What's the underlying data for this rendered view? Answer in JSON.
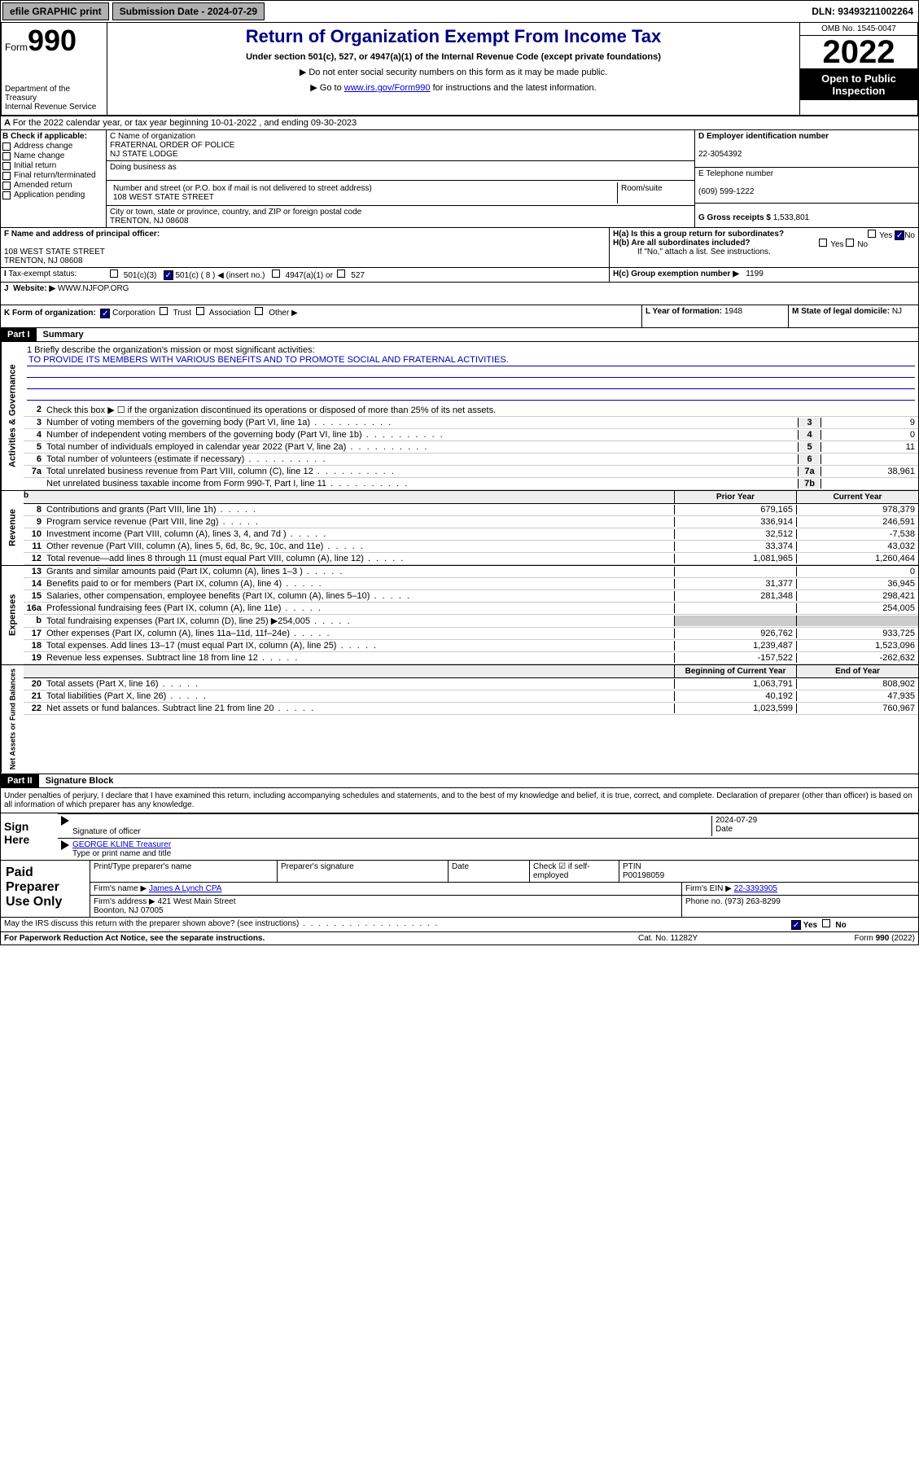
{
  "topbar": {
    "efile": "efile GRAPHIC print",
    "subdate_label": "Submission Date - 2024-07-29",
    "dln": "DLN: 93493211002264"
  },
  "header": {
    "form": "Form",
    "f990": "990",
    "dept": "Department of the Treasury\nInternal Revenue Service",
    "title": "Return of Organization Exempt From Income Tax",
    "sub": "Under section 501(c), 527, or 4947(a)(1) of the Internal Revenue Code (except private foundations)",
    "note1": "▶ Do not enter social security numbers on this form as it may be made public.",
    "note2": "▶ Go to www.irs.gov/Form990 for instructions and the latest information.",
    "note2_link": "www.irs.gov/Form990",
    "note2_pre": "▶ Go to ",
    "note2_post": " for instructions and the latest information.",
    "omb": "OMB No. 1545-0047",
    "year": "2022",
    "otp": "Open to Public Inspection"
  },
  "A": {
    "text": "For the 2022 calendar year, or tax year beginning 10-01-2022    , and ending 09-30-2023"
  },
  "B": {
    "label": "B Check if applicable:",
    "items": [
      "Address change",
      "Name change",
      "Initial return",
      "Final return/terminated",
      "Amended return",
      "Application pending"
    ]
  },
  "C": {
    "label": "C Name of organization",
    "name": "FRATERNAL ORDER OF POLICE\nNJ STATE LODGE",
    "dba": "Doing business as",
    "addr_label": "Number and street (or P.O. box if mail is not delivered to street address)",
    "room": "Room/suite",
    "addr": "108 WEST STATE STREET",
    "city_label": "City or town, state or province, country, and ZIP or foreign postal code",
    "city": "TRENTON, NJ  08608"
  },
  "D": {
    "label": "D Employer identification number",
    "ein": "22-3054392"
  },
  "E": {
    "label": "E Telephone number",
    "phone": "(609) 599-1222"
  },
  "G": {
    "label": "G Gross receipts $",
    "amt": "1,533,801"
  },
  "F": {
    "label": "F Name and address of principal officer:",
    "addr": "108 WEST STATE STREET\nTRENTON, NJ  08608"
  },
  "H": {
    "a": "H(a)  Is this a group return for subordinates?",
    "b": "H(b)  Are all subordinates included?",
    "bnote": "If \"No,\" attach a list. See instructions.",
    "c": "H(c)  Group exemption number ▶",
    "cval": "1199"
  },
  "I": {
    "label": "Tax-exempt status:",
    "c3": "501(c)(3)",
    "c": "501(c) ( 8 ) ◀ (insert no.)",
    "a1": "4947(a)(1) or",
    "s527": "527"
  },
  "J": {
    "label": "Website: ▶",
    "val": "WWW.NJFOP.ORG"
  },
  "K": {
    "label": "K Form of organization:",
    "corp": "Corporation",
    "trust": "Trust",
    "assoc": "Association",
    "other": "Other ▶"
  },
  "L": {
    "label": "L Year of formation:",
    "val": "1948"
  },
  "M": {
    "label": "M State of legal domicile:",
    "val": "NJ"
  },
  "part1": {
    "label": "Part I",
    "title": "Summary"
  },
  "mission": {
    "q": "1  Briefly describe the organization's mission or most significant activities:",
    "text": "TO PROVIDE ITS MEMBERS WITH VARIOUS BENEFITS AND TO PROMOTE SOCIAL AND FRATERNAL ACTIVITIES."
  },
  "gov": {
    "l2": "Check this box ▶ ☐  if the organization discontinued its operations or disposed of more than 25% of its net assets.",
    "rows": [
      {
        "n": "3",
        "t": "Number of voting members of the governing body (Part VI, line 1a)",
        "nb": "3",
        "v": "9"
      },
      {
        "n": "4",
        "t": "Number of independent voting members of the governing body (Part VI, line 1b)",
        "nb": "4",
        "v": "0"
      },
      {
        "n": "5",
        "t": "Total number of individuals employed in calendar year 2022 (Part V, line 2a)",
        "nb": "5",
        "v": "11"
      },
      {
        "n": "6",
        "t": "Total number of volunteers (estimate if necessary)",
        "nb": "6",
        "v": ""
      },
      {
        "n": "7a",
        "t": "Total unrelated business revenue from Part VIII, column (C), line 12",
        "nb": "7a",
        "v": "38,961"
      },
      {
        "n": "",
        "t": "Net unrelated business taxable income from Form 990-T, Part I, line 11",
        "nb": "7b",
        "v": ""
      }
    ]
  },
  "rev": {
    "h1": "Prior Year",
    "h2": "Current Year",
    "rows": [
      {
        "n": "8",
        "t": "Contributions and grants (Part VIII, line 1h)",
        "p": "679,165",
        "c": "978,379"
      },
      {
        "n": "9",
        "t": "Program service revenue (Part VIII, line 2g)",
        "p": "336,914",
        "c": "246,591"
      },
      {
        "n": "10",
        "t": "Investment income (Part VIII, column (A), lines 3, 4, and 7d )",
        "p": "32,512",
        "c": "-7,538"
      },
      {
        "n": "11",
        "t": "Other revenue (Part VIII, column (A), lines 5, 6d, 8c, 9c, 10c, and 11e)",
        "p": "33,374",
        "c": "43,032"
      },
      {
        "n": "12",
        "t": "Total revenue—add lines 8 through 11 (must equal Part VIII, column (A), line 12)",
        "p": "1,081,965",
        "c": "1,260,464"
      }
    ]
  },
  "exp": {
    "rows": [
      {
        "n": "13",
        "t": "Grants and similar amounts paid (Part IX, column (A), lines 1–3 )",
        "p": "",
        "c": "0"
      },
      {
        "n": "14",
        "t": "Benefits paid to or for members (Part IX, column (A), line 4)",
        "p": "31,377",
        "c": "36,945"
      },
      {
        "n": "15",
        "t": "Salaries, other compensation, employee benefits (Part IX, column (A), lines 5–10)",
        "p": "281,348",
        "c": "298,421"
      },
      {
        "n": "16a",
        "t": "Professional fundraising fees (Part IX, column (A), line 11e)",
        "p": "",
        "c": "254,005"
      },
      {
        "n": "b",
        "t": "Total fundraising expenses (Part IX, column (D), line 25) ▶254,005",
        "p": "",
        "c": "",
        "grey": true
      },
      {
        "n": "17",
        "t": "Other expenses (Part IX, column (A), lines 11a–11d, 11f–24e)",
        "p": "926,762",
        "c": "933,725"
      },
      {
        "n": "18",
        "t": "Total expenses. Add lines 13–17 (must equal Part IX, column (A), line 25)",
        "p": "1,239,487",
        "c": "1,523,096"
      },
      {
        "n": "19",
        "t": "Revenue less expenses. Subtract line 18 from line 12",
        "p": "-157,522",
        "c": "-262,632"
      }
    ]
  },
  "net": {
    "h1": "Beginning of Current Year",
    "h2": "End of Year",
    "rows": [
      {
        "n": "20",
        "t": "Total assets (Part X, line 16)",
        "p": "1,063,791",
        "c": "808,902"
      },
      {
        "n": "21",
        "t": "Total liabilities (Part X, line 26)",
        "p": "40,192",
        "c": "47,935"
      },
      {
        "n": "22",
        "t": "Net assets or fund balances. Subtract line 21 from line 20",
        "p": "1,023,599",
        "c": "760,967"
      }
    ]
  },
  "part2": {
    "label": "Part II",
    "title": "Signature Block"
  },
  "sig": {
    "decl": "Under penalties of perjury, I declare that I have examined this return, including accompanying schedules and statements, and to the best of my knowledge and belief, it is true, correct, and complete. Declaration of preparer (other than officer) is based on all information of which preparer has any knowledge.",
    "here": "Sign Here",
    "sigoff": "Signature of officer",
    "date": "Date",
    "dateval": "2024-07-29",
    "name": "GEORGE KLINE Treasurer",
    "namelbl": "Type or print name and title"
  },
  "prep": {
    "label": "Paid Preparer Use Only",
    "pt": "Print/Type preparer's name",
    "ps": "Preparer's signature",
    "dt": "Date",
    "chk": "Check ☑ if self-employed",
    "ptin": "PTIN",
    "ptinval": "P00198059",
    "firm": "Firm's name    ▶",
    "firmval": "James A Lynch CPA",
    "ein": "Firm's EIN ▶",
    "einval": "22-3393905",
    "addr": "Firm's address ▶",
    "addrval": "421 West Main Street\nBoonton, NJ  07005",
    "phone": "Phone no.",
    "phoneval": "(973) 263-8299"
  },
  "may": {
    "q": "May the IRS discuss this return with the preparer shown above? (see instructions)",
    "yes": "Yes",
    "no": "No"
  },
  "foot": {
    "pra": "For Paperwork Reduction Act Notice, see the separate instructions.",
    "cat": "Cat. No. 11282Y",
    "form": "Form 990 (2022)"
  },
  "vlabs": {
    "gov": "Activities & Governance",
    "rev": "Revenue",
    "exp": "Expenses",
    "net": "Net Assets or Fund Balances"
  }
}
